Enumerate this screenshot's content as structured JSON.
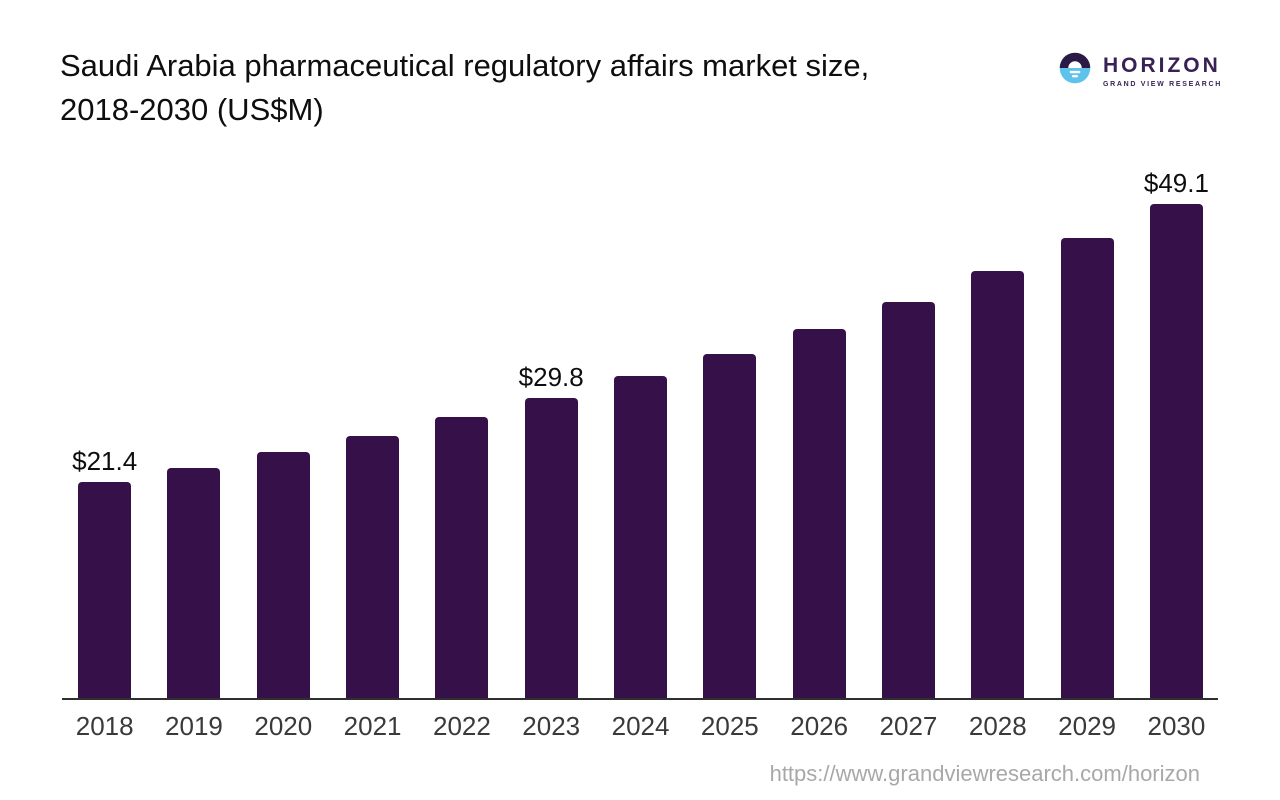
{
  "title": {
    "line1": "Saudi Arabia pharmaceutical regulatory affairs market size,",
    "line2": "2018-2030 (US$M)"
  },
  "logo": {
    "brand": "HORIZON",
    "subtitle": "GRAND VIEW RESEARCH",
    "icon": "horizon-sun-over-water-icon",
    "colors": {
      "circle_top": "#2b1a45",
      "circle_bottom": "#5ec2ed",
      "text": "#3a2155"
    }
  },
  "footer": {
    "url": "https://www.grandviewresearch.com/horizon"
  },
  "chart_data": {
    "type": "bar",
    "title": "Saudi Arabia pharmaceutical regulatory affairs market size, 2018-2030 (US$M)",
    "unit": "US$M",
    "categories": [
      "2018",
      "2019",
      "2020",
      "2021",
      "2022",
      "2023",
      "2024",
      "2025",
      "2026",
      "2027",
      "2028",
      "2029",
      "2030"
    ],
    "values": [
      21.4,
      22.8,
      24.4,
      26.0,
      27.9,
      29.8,
      31.9,
      34.1,
      36.6,
      39.3,
      42.4,
      45.6,
      49.1
    ],
    "point_labels": [
      "$21.4",
      "",
      "",
      "",
      "",
      "$29.8",
      "",
      "",
      "",
      "",
      "",
      "",
      "$49.1"
    ],
    "bar_color": "#351049",
    "axis_line_color": "#2f2f2f",
    "tick_label_color": "#3a3a3a",
    "data_label_color": "#0e0e0e",
    "ylim": [
      0,
      52
    ],
    "grid": false,
    "legend": false,
    "yaxis_visible": false
  }
}
